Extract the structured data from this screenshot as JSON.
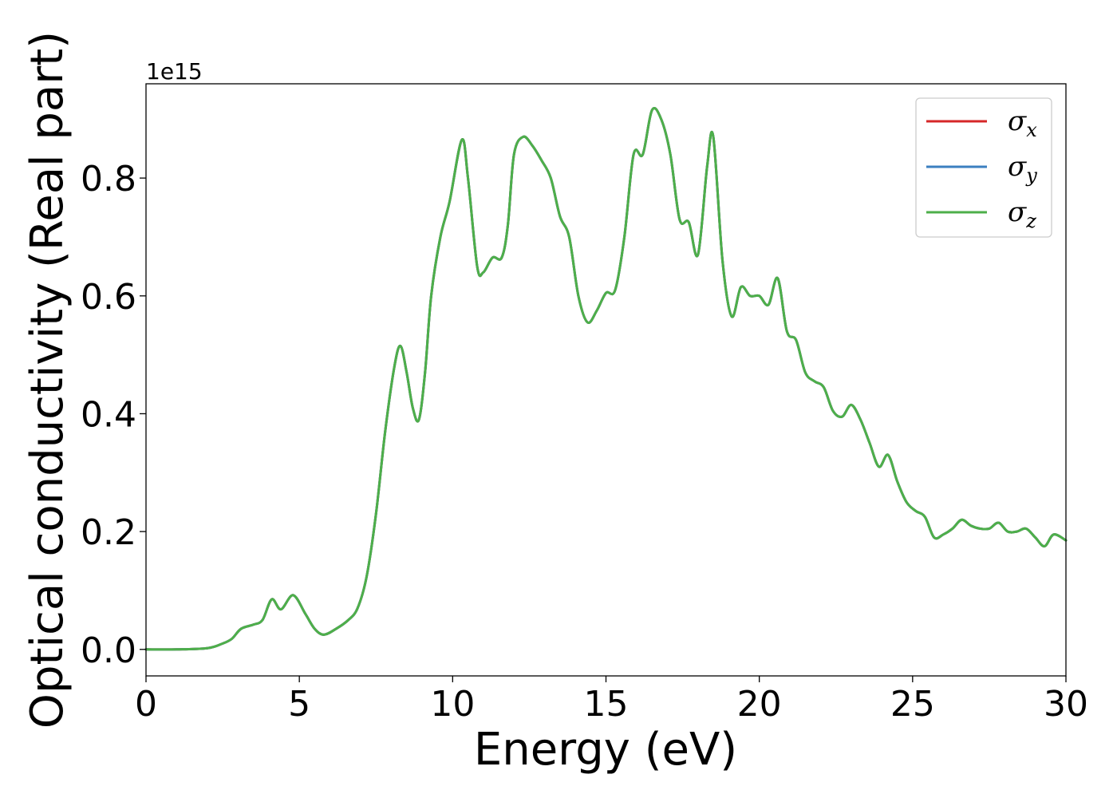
{
  "chart_data": {
    "type": "line",
    "title": "",
    "xlabel": "Energy (eV)",
    "ylabel": "Optical conductivity (Real part)",
    "y_offset_label": "1e15",
    "xlim": [
      0,
      30
    ],
    "ylim": [
      -0.045,
      0.96
    ],
    "x_ticks": [
      0,
      5,
      10,
      15,
      20,
      25,
      30
    ],
    "x_tick_labels": [
      "0",
      "5",
      "10",
      "15",
      "20",
      "25",
      "30"
    ],
    "y_ticks": [
      0.0,
      0.2,
      0.4,
      0.6,
      0.8
    ],
    "y_tick_labels": [
      "0.0",
      "0.2",
      "0.4",
      "0.6",
      "0.8"
    ],
    "grid": false,
    "legend_position": "top-right",
    "series": [
      {
        "name": "σx",
        "symbol": "σ",
        "subscript": "x",
        "color": "#d62728",
        "x": [
          0,
          1,
          2,
          2.5,
          2.8,
          3.1,
          3.5,
          3.8,
          4.1,
          4.4,
          4.8,
          5.2,
          5.5,
          5.8,
          6.2,
          6.6,
          6.9,
          7.2,
          7.5,
          7.8,
          8.1,
          8.3,
          8.5,
          8.7,
          8.9,
          9.1,
          9.3,
          9.6,
          9.9,
          10.3,
          10.5,
          10.8,
          11.0,
          11.3,
          11.6,
          11.8,
          12.0,
          12.3,
          12.6,
          12.9,
          13.2,
          13.5,
          13.8,
          14.1,
          14.4,
          14.7,
          15.0,
          15.3,
          15.6,
          15.9,
          16.2,
          16.5,
          16.8,
          17.1,
          17.4,
          17.7,
          18.0,
          18.3,
          18.5,
          18.8,
          19.1,
          19.4,
          19.7,
          20.0,
          20.3,
          20.6,
          20.9,
          21.2,
          21.5,
          21.8,
          22.1,
          22.4,
          22.7,
          23.0,
          23.3,
          23.6,
          23.9,
          24.2,
          24.5,
          24.8,
          25.1,
          25.4,
          25.7,
          26.0,
          26.3,
          26.6,
          26.9,
          27.2,
          27.5,
          27.8,
          28.1,
          28.4,
          28.7,
          29.0,
          29.3,
          29.6,
          30.0
        ],
        "y": [
          0.0,
          0.0,
          0.002,
          0.01,
          0.018,
          0.035,
          0.042,
          0.05,
          0.085,
          0.068,
          0.092,
          0.06,
          0.035,
          0.025,
          0.035,
          0.05,
          0.07,
          0.125,
          0.23,
          0.37,
          0.48,
          0.515,
          0.47,
          0.41,
          0.39,
          0.47,
          0.6,
          0.7,
          0.76,
          0.865,
          0.8,
          0.65,
          0.64,
          0.665,
          0.665,
          0.72,
          0.84,
          0.87,
          0.855,
          0.83,
          0.8,
          0.735,
          0.7,
          0.6,
          0.555,
          0.575,
          0.605,
          0.61,
          0.7,
          0.84,
          0.84,
          0.915,
          0.9,
          0.84,
          0.73,
          0.725,
          0.67,
          0.82,
          0.87,
          0.66,
          0.565,
          0.615,
          0.6,
          0.6,
          0.585,
          0.63,
          0.54,
          0.525,
          0.47,
          0.455,
          0.445,
          0.405,
          0.395,
          0.415,
          0.39,
          0.35,
          0.31,
          0.33,
          0.285,
          0.25,
          0.235,
          0.225,
          0.19,
          0.195,
          0.205,
          0.22,
          0.21,
          0.205,
          0.205,
          0.215,
          0.2,
          0.2,
          0.205,
          0.19,
          0.175,
          0.195,
          0.185
        ]
      },
      {
        "name": "σy",
        "symbol": "σ",
        "subscript": "y",
        "color": "#3b7fc0",
        "x": [
          0,
          1,
          2,
          2.5,
          2.8,
          3.1,
          3.5,
          3.8,
          4.1,
          4.4,
          4.8,
          5.2,
          5.5,
          5.8,
          6.2,
          6.6,
          6.9,
          7.2,
          7.5,
          7.8,
          8.1,
          8.3,
          8.5,
          8.7,
          8.9,
          9.1,
          9.3,
          9.6,
          9.9,
          10.3,
          10.5,
          10.8,
          11.0,
          11.3,
          11.6,
          11.8,
          12.0,
          12.3,
          12.6,
          12.9,
          13.2,
          13.5,
          13.8,
          14.1,
          14.4,
          14.7,
          15.0,
          15.3,
          15.6,
          15.9,
          16.2,
          16.5,
          16.8,
          17.1,
          17.4,
          17.7,
          18.0,
          18.3,
          18.5,
          18.8,
          19.1,
          19.4,
          19.7,
          20.0,
          20.3,
          20.6,
          20.9,
          21.2,
          21.5,
          21.8,
          22.1,
          22.4,
          22.7,
          23.0,
          23.3,
          23.6,
          23.9,
          24.2,
          24.5,
          24.8,
          25.1,
          25.4,
          25.7,
          26.0,
          26.3,
          26.6,
          26.9,
          27.2,
          27.5,
          27.8,
          28.1,
          28.4,
          28.7,
          29.0,
          29.3,
          29.6,
          30.0
        ],
        "y": [
          0.0,
          0.0,
          0.002,
          0.01,
          0.018,
          0.035,
          0.042,
          0.05,
          0.085,
          0.068,
          0.092,
          0.06,
          0.035,
          0.025,
          0.035,
          0.05,
          0.07,
          0.125,
          0.23,
          0.37,
          0.48,
          0.515,
          0.47,
          0.41,
          0.39,
          0.47,
          0.6,
          0.7,
          0.76,
          0.865,
          0.8,
          0.65,
          0.64,
          0.665,
          0.665,
          0.72,
          0.84,
          0.87,
          0.855,
          0.83,
          0.8,
          0.735,
          0.7,
          0.6,
          0.555,
          0.575,
          0.605,
          0.61,
          0.7,
          0.84,
          0.84,
          0.915,
          0.9,
          0.84,
          0.73,
          0.725,
          0.67,
          0.82,
          0.87,
          0.66,
          0.565,
          0.615,
          0.6,
          0.6,
          0.585,
          0.63,
          0.54,
          0.525,
          0.47,
          0.455,
          0.445,
          0.405,
          0.395,
          0.415,
          0.39,
          0.35,
          0.31,
          0.33,
          0.285,
          0.25,
          0.235,
          0.225,
          0.19,
          0.195,
          0.205,
          0.22,
          0.21,
          0.205,
          0.205,
          0.215,
          0.2,
          0.2,
          0.205,
          0.19,
          0.175,
          0.195,
          0.185
        ]
      },
      {
        "name": "σz",
        "symbol": "σ",
        "subscript": "z",
        "color": "#4daf4a",
        "x": [
          0,
          1,
          2,
          2.5,
          2.8,
          3.1,
          3.5,
          3.8,
          4.1,
          4.4,
          4.8,
          5.2,
          5.5,
          5.8,
          6.2,
          6.6,
          6.9,
          7.2,
          7.5,
          7.8,
          8.1,
          8.3,
          8.5,
          8.7,
          8.9,
          9.1,
          9.3,
          9.6,
          9.9,
          10.3,
          10.5,
          10.8,
          11.0,
          11.3,
          11.6,
          11.8,
          12.0,
          12.3,
          12.6,
          12.9,
          13.2,
          13.5,
          13.8,
          14.1,
          14.4,
          14.7,
          15.0,
          15.3,
          15.6,
          15.9,
          16.2,
          16.5,
          16.8,
          17.1,
          17.4,
          17.7,
          18.0,
          18.3,
          18.5,
          18.8,
          19.1,
          19.4,
          19.7,
          20.0,
          20.3,
          20.6,
          20.9,
          21.2,
          21.5,
          21.8,
          22.1,
          22.4,
          22.7,
          23.0,
          23.3,
          23.6,
          23.9,
          24.2,
          24.5,
          24.8,
          25.1,
          25.4,
          25.7,
          26.0,
          26.3,
          26.6,
          26.9,
          27.2,
          27.5,
          27.8,
          28.1,
          28.4,
          28.7,
          29.0,
          29.3,
          29.6,
          30.0
        ],
        "y": [
          0.0,
          0.0,
          0.002,
          0.01,
          0.018,
          0.035,
          0.042,
          0.05,
          0.085,
          0.068,
          0.092,
          0.06,
          0.035,
          0.025,
          0.035,
          0.05,
          0.07,
          0.125,
          0.23,
          0.37,
          0.48,
          0.515,
          0.47,
          0.41,
          0.39,
          0.47,
          0.6,
          0.7,
          0.76,
          0.865,
          0.8,
          0.65,
          0.64,
          0.665,
          0.665,
          0.72,
          0.84,
          0.87,
          0.855,
          0.83,
          0.8,
          0.735,
          0.7,
          0.6,
          0.555,
          0.575,
          0.605,
          0.61,
          0.7,
          0.84,
          0.84,
          0.915,
          0.9,
          0.84,
          0.73,
          0.725,
          0.67,
          0.82,
          0.87,
          0.66,
          0.565,
          0.615,
          0.6,
          0.6,
          0.585,
          0.63,
          0.54,
          0.525,
          0.47,
          0.455,
          0.445,
          0.405,
          0.395,
          0.415,
          0.39,
          0.35,
          0.31,
          0.33,
          0.285,
          0.25,
          0.235,
          0.225,
          0.19,
          0.195,
          0.205,
          0.22,
          0.21,
          0.205,
          0.205,
          0.215,
          0.2,
          0.2,
          0.205,
          0.19,
          0.175,
          0.195,
          0.185
        ]
      }
    ]
  }
}
